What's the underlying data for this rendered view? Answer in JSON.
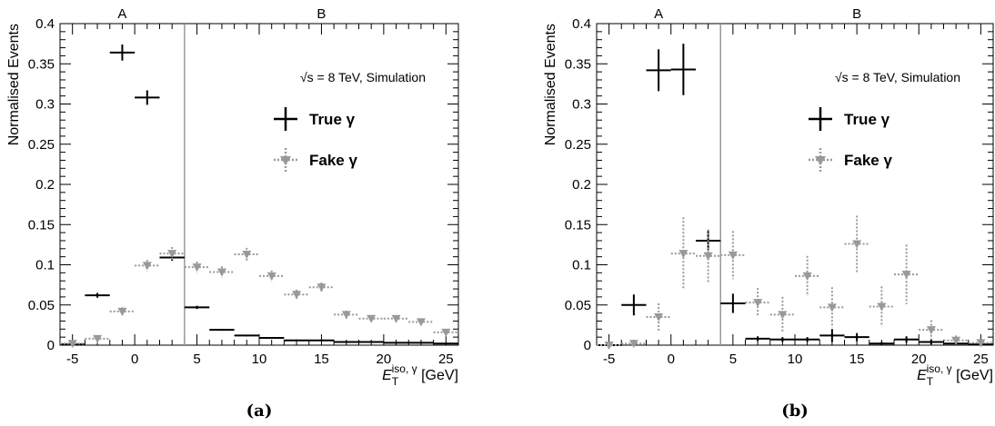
{
  "chart_data": [
    {
      "type": "scatter",
      "panel_label": "(a)",
      "ylabel": "Normalised Events",
      "xlabel_main": "E",
      "xlabel_sub": "T",
      "xlabel_sup": "iso, γ",
      "xlabel_unit": "[GeV]",
      "xlim": [
        -6,
        26
      ],
      "ylim": [
        0,
        0.4
      ],
      "xticks": [
        -5,
        0,
        5,
        10,
        15,
        20,
        25
      ],
      "yticks": [
        0,
        0.05,
        0.1,
        0.15,
        0.2,
        0.25,
        0.3,
        0.35,
        0.4
      ],
      "ytick_labels": [
        "0",
        "0.05",
        "0.1",
        "0.15",
        "0.2",
        "0.25",
        "0.3",
        "0.35",
        "0.4"
      ],
      "region_divider_x": 4,
      "region_labels": [
        {
          "text": "A",
          "x": -1
        },
        {
          "text": "B",
          "x": 15
        }
      ],
      "annotation": "√s = 8 TeV, Simulation",
      "legend_position": "top-right",
      "series": [
        {
          "name": "True γ",
          "style": "solid",
          "color": "#000000",
          "x": [
            -5,
            -3,
            -1,
            1,
            3,
            5,
            7,
            9,
            11,
            13,
            15,
            17,
            19,
            21,
            23,
            25
          ],
          "xerr": 1,
          "y": [
            0.001,
            0.062,
            0.364,
            0.308,
            0.109,
            0.047,
            0.019,
            0.012,
            0.009,
            0.006,
            0.006,
            0.004,
            0.004,
            0.003,
            0.003,
            0.002
          ],
          "yerr": [
            0.001,
            0.003,
            0.01,
            0.009,
            0.004,
            0.002,
            0.001,
            0.001,
            0.001,
            0.001,
            0.001,
            0.001,
            0.001,
            0.001,
            0.001,
            0.001
          ]
        },
        {
          "name": "Fake γ",
          "style": "dotted-triangle",
          "color": "#999999",
          "x": [
            -5,
            -3,
            -1,
            1,
            3,
            5,
            7,
            9,
            11,
            13,
            15,
            17,
            19,
            21,
            23,
            25
          ],
          "xerr": 1,
          "y": [
            0.002,
            0.008,
            0.042,
            0.099,
            0.114,
            0.097,
            0.091,
            0.113,
            0.086,
            0.063,
            0.072,
            0.038,
            0.033,
            0.033,
            0.029,
            0.016
          ],
          "yerr": [
            0.002,
            0.004,
            0.005,
            0.007,
            0.008,
            0.007,
            0.007,
            0.008,
            0.007,
            0.006,
            0.006,
            0.005,
            0.004,
            0.004,
            0.004,
            0.004
          ]
        }
      ]
    },
    {
      "type": "scatter",
      "panel_label": "(b)",
      "ylabel": "Normalised Events",
      "xlabel_main": "E",
      "xlabel_sub": "T",
      "xlabel_sup": "iso, γ",
      "xlabel_unit": "[GeV]",
      "xlim": [
        -6,
        26
      ],
      "ylim": [
        0,
        0.4
      ],
      "xticks": [
        -5,
        0,
        5,
        10,
        15,
        20,
        25
      ],
      "yticks": [
        0,
        0.05,
        0.1,
        0.15,
        0.2,
        0.25,
        0.3,
        0.35,
        0.4
      ],
      "ytick_labels": [
        "0",
        "0.05",
        "0.1",
        "0.15",
        "0.2",
        "0.25",
        "0.3",
        "0.35",
        "0.4"
      ],
      "region_divider_x": 4,
      "region_labels": [
        {
          "text": "A",
          "x": -1
        },
        {
          "text": "B",
          "x": 15
        }
      ],
      "annotation": "√s = 8 TeV, Simulation",
      "legend_position": "top-right",
      "series": [
        {
          "name": "True γ",
          "style": "solid",
          "color": "#000000",
          "x": [
            -5,
            -3,
            -1,
            1,
            3,
            5,
            7,
            9,
            11,
            13,
            15,
            17,
            19,
            21,
            23,
            25
          ],
          "xerr": 1,
          "y": [
            0,
            0.05,
            0.342,
            0.343,
            0.13,
            0.052,
            0.008,
            0.007,
            0.007,
            0.012,
            0.01,
            0.002,
            0.007,
            0.004,
            0.002,
            0.001
          ],
          "yerr": [
            0,
            0.013,
            0.026,
            0.032,
            0.012,
            0.012,
            0.003,
            0.003,
            0.003,
            0.008,
            0.005,
            0.002,
            0.004,
            0.003,
            0.002,
            0.001
          ]
        },
        {
          "name": "Fake γ",
          "style": "dotted-triangle",
          "color": "#999999",
          "x": [
            -5,
            -3,
            -1,
            1,
            3,
            5,
            7,
            9,
            11,
            13,
            15,
            17,
            19,
            21,
            23,
            25
          ],
          "xerr": 1,
          "y": [
            0,
            0.002,
            0.035,
            0.114,
            0.111,
            0.112,
            0.053,
            0.038,
            0.086,
            0.047,
            0.126,
            0.048,
            0.088,
            0.019,
            0.006,
            0.003
          ],
          "yerr": [
            0,
            0.003,
            0.017,
            0.045,
            0.033,
            0.03,
            0.018,
            0.022,
            0.025,
            0.025,
            0.035,
            0.025,
            0.037,
            0.012,
            0.006,
            0.003
          ]
        }
      ]
    }
  ]
}
